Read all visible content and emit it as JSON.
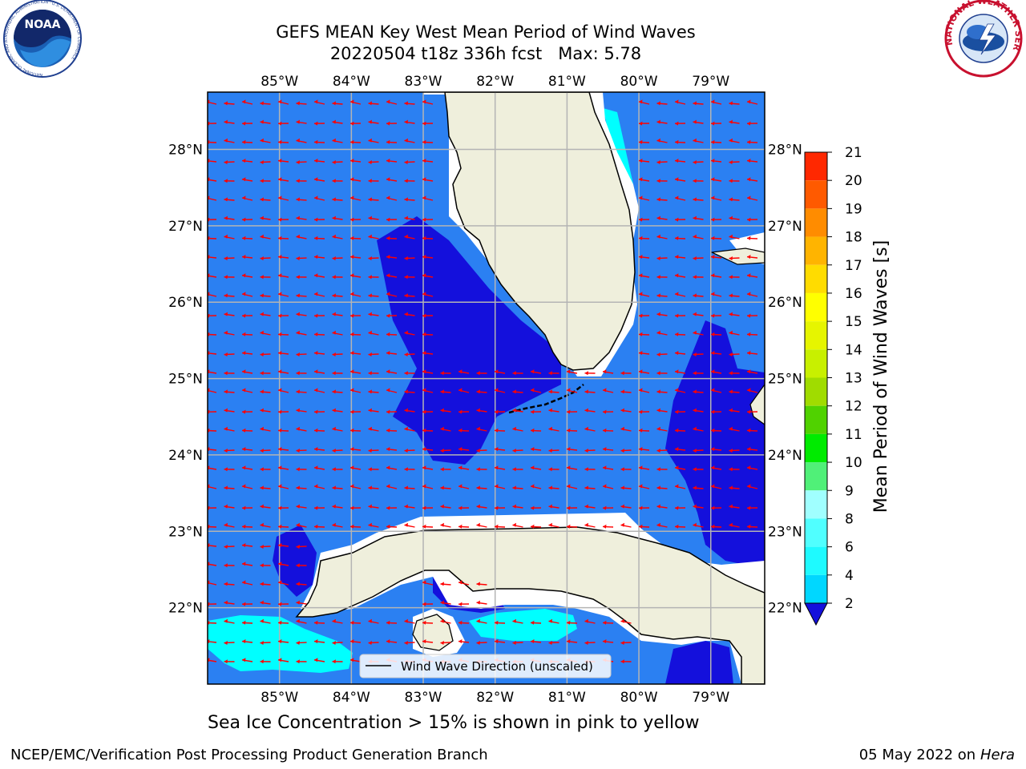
{
  "title_line1": "GEFS MEAN Key West Mean Period of Wind Waves",
  "title_line2": "20220504 t18z 336h fcst   Max: 5.78",
  "agency_logo_left": "NOAA",
  "agency_logo_left_ring": "NATIONAL OCEANIC AND ATMOSPHERIC ADMINISTRATION · U.S. DEPARTMENT OF COMMERCE",
  "agency_logo_right": "NATIONAL WEATHER SERVICE",
  "map": {
    "lon_labels": [
      "85°W",
      "84°W",
      "83°W",
      "82°W",
      "81°W",
      "80°W",
      "79°W"
    ],
    "lat_labels": [
      "28°N",
      "27°N",
      "26°N",
      "25°N",
      "24°N",
      "23°N",
      "22°N"
    ],
    "extent": {
      "lon_min": -86.0,
      "lon_max": -78.25,
      "lat_min": 21.0,
      "lat_max": 28.75
    },
    "colors": {
      "ocean_2_4": "#2b80f2",
      "ocean_lt_2": "#1410dc",
      "ocean_4_6": "#00ffff",
      "land": "#efefdc",
      "arrow": "#ff0000",
      "grid": "#b4b4b4"
    }
  },
  "legend": {
    "label": "Wind Wave Direction (unscaled)"
  },
  "colorbar": {
    "label": "Mean Period of Wind Waves [s]",
    "ticks": [
      "2",
      "4",
      "6",
      "8",
      "9",
      "10",
      "11",
      "12",
      "13",
      "14",
      "15",
      "16",
      "17",
      "18",
      "19",
      "20",
      "21"
    ],
    "colors": [
      "#0a75ff",
      "#00d7ff",
      "#1efaff",
      "#50ffff",
      "#a0ffff",
      "#50f078",
      "#00eb00",
      "#50d200",
      "#a0dc00",
      "#c8f000",
      "#e6f500",
      "#ffff00",
      "#ffdc00",
      "#ffb400",
      "#ff8c00",
      "#ff5a00",
      "#ff2800",
      "#ff0000"
    ],
    "extend_color": "#1410dc"
  },
  "caption": "Sea Ice Concentration > 15% is shown in pink to yellow",
  "footer_left": "NCEP/EMC/Verification Post Processing Product Generation Branch",
  "footer_date": "05 May 2022 on",
  "footer_host": "Hera"
}
